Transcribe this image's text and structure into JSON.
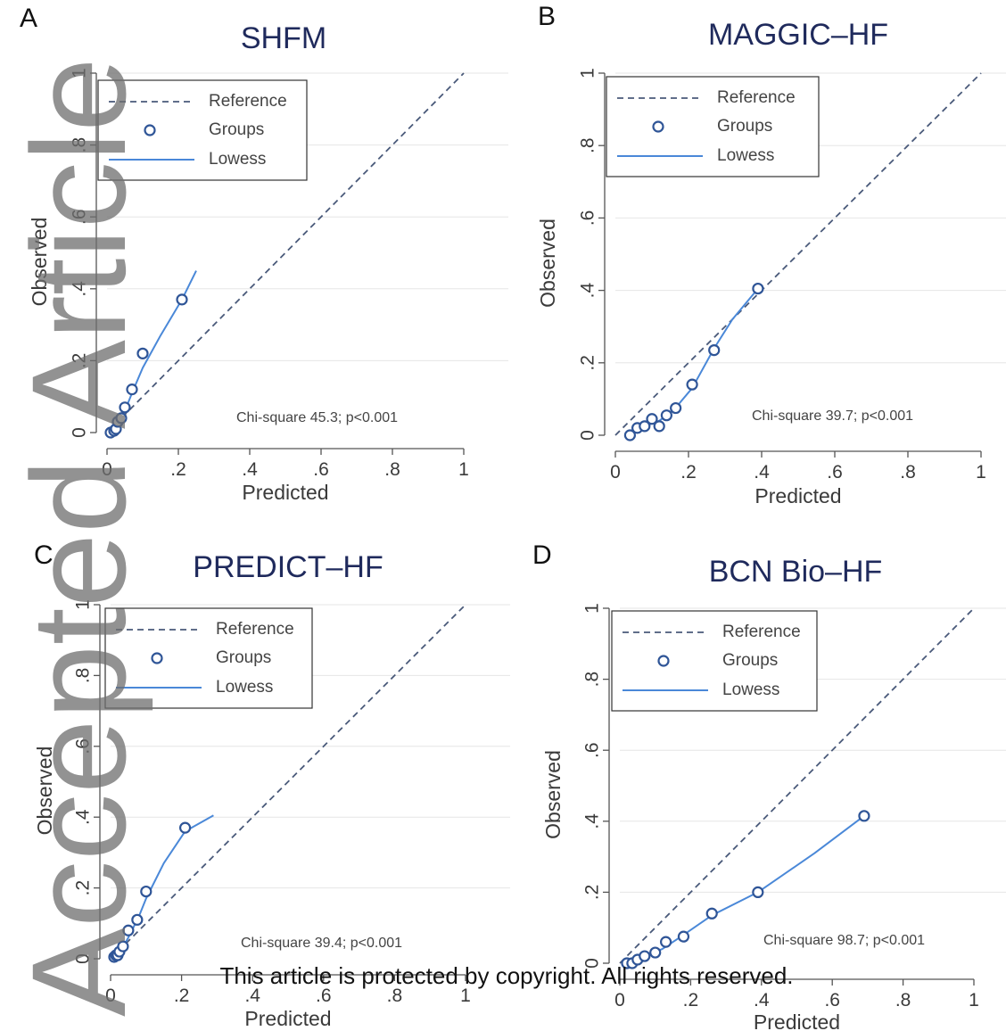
{
  "watermark": "Accepted Article",
  "footer": "This article is protected by copyright. All rights reserved.",
  "colors": {
    "reference": "#4a5a7a",
    "groups": "#2f5597",
    "lowess": "#4a88d8",
    "axis": "#555555",
    "grid": "#e6e6e6"
  },
  "chart_data": [
    {
      "panel": "A",
      "type": "scatter",
      "title": "SHFM",
      "xlabel": "Predicted",
      "ylabel": "Observed",
      "xlim": [
        0,
        1
      ],
      "ylim": [
        0,
        1
      ],
      "xticks": [
        "0",
        ".2",
        ".4",
        ".6",
        ".8",
        "1"
      ],
      "yticks": [
        "0",
        ".2",
        ".4",
        ".6",
        ".8",
        "1"
      ],
      "legend": [
        "Reference",
        "Groups",
        "Lowess"
      ],
      "legend_position": "top-left",
      "annotation": "Chi-square 45.3; p<0.001",
      "groups": [
        [
          0.01,
          0.0
        ],
        [
          0.02,
          0.005
        ],
        [
          0.025,
          0.01
        ],
        [
          0.03,
          0.03
        ],
        [
          0.04,
          0.04
        ],
        [
          0.05,
          0.07
        ],
        [
          0.07,
          0.12
        ],
        [
          0.1,
          0.22
        ],
        [
          0.21,
          0.37
        ]
      ],
      "lowess": [
        [
          0.01,
          0.0
        ],
        [
          0.03,
          0.025
        ],
        [
          0.05,
          0.06
        ],
        [
          0.07,
          0.11
        ],
        [
          0.1,
          0.18
        ],
        [
          0.15,
          0.27
        ],
        [
          0.21,
          0.37
        ],
        [
          0.25,
          0.45
        ]
      ]
    },
    {
      "panel": "B",
      "type": "scatter",
      "title": "MAGGIC–HF",
      "xlabel": "Predicted",
      "ylabel": "Observed",
      "xlim": [
        0,
        1
      ],
      "ylim": [
        0,
        1
      ],
      "xticks": [
        "0",
        ".2",
        ".4",
        ".6",
        ".8",
        "1"
      ],
      "yticks": [
        "0",
        ".2",
        ".4",
        ".6",
        ".8",
        "1"
      ],
      "legend": [
        "Reference",
        "Groups",
        "Lowess"
      ],
      "legend_position": "top-left",
      "annotation": "Chi-square 39.7; p<0.001",
      "groups": [
        [
          0.04,
          0.0
        ],
        [
          0.06,
          0.02
        ],
        [
          0.08,
          0.025
        ],
        [
          0.1,
          0.045
        ],
        [
          0.12,
          0.025
        ],
        [
          0.14,
          0.055
        ],
        [
          0.165,
          0.075
        ],
        [
          0.21,
          0.14
        ],
        [
          0.27,
          0.235
        ],
        [
          0.39,
          0.405
        ]
      ],
      "lowess": [
        [
          0.04,
          0.005
        ],
        [
          0.08,
          0.025
        ],
        [
          0.12,
          0.04
        ],
        [
          0.16,
          0.07
        ],
        [
          0.21,
          0.13
        ],
        [
          0.27,
          0.24
        ],
        [
          0.32,
          0.32
        ],
        [
          0.39,
          0.405
        ]
      ]
    },
    {
      "panel": "C",
      "type": "scatter",
      "title": "PREDICT–HF",
      "xlabel": "Predicted",
      "ylabel": "Observed",
      "xlim": [
        0,
        1
      ],
      "ylim": [
        0,
        1
      ],
      "xticks": [
        "0",
        ".2",
        ".4",
        ".6",
        ".8",
        "1"
      ],
      "yticks": [
        "0",
        ".2",
        ".4",
        ".6",
        ".8",
        "1"
      ],
      "legend": [
        "Reference",
        "Groups",
        "Lowess"
      ],
      "legend_position": "top-left",
      "annotation": "Chi-square 39.4; p<0.001",
      "groups": [
        [
          0.01,
          0.005
        ],
        [
          0.015,
          0.01
        ],
        [
          0.02,
          0.01
        ],
        [
          0.025,
          0.02
        ],
        [
          0.035,
          0.035
        ],
        [
          0.05,
          0.08
        ],
        [
          0.075,
          0.11
        ],
        [
          0.1,
          0.19
        ],
        [
          0.21,
          0.37
        ]
      ],
      "lowess": [
        [
          0.01,
          0.0
        ],
        [
          0.03,
          0.025
        ],
        [
          0.05,
          0.06
        ],
        [
          0.08,
          0.12
        ],
        [
          0.1,
          0.17
        ],
        [
          0.15,
          0.27
        ],
        [
          0.21,
          0.36
        ],
        [
          0.29,
          0.405
        ]
      ]
    },
    {
      "panel": "D",
      "type": "scatter",
      "title": "BCN Bio–HF",
      "xlabel": "Predicted",
      "ylabel": "Observed",
      "xlim": [
        0,
        1
      ],
      "ylim": [
        0,
        1
      ],
      "xticks": [
        "0",
        ".2",
        ".4",
        ".6",
        ".8",
        "1"
      ],
      "yticks": [
        "0",
        ".2",
        ".4",
        ".6",
        ".8",
        "1"
      ],
      "legend": [
        "Reference",
        "Groups",
        "Lowess"
      ],
      "legend_position": "top-left",
      "annotation": "Chi-square 98.7; p<0.001",
      "groups": [
        [
          0.02,
          0.0
        ],
        [
          0.035,
          0.0
        ],
        [
          0.05,
          0.01
        ],
        [
          0.07,
          0.02
        ],
        [
          0.1,
          0.03
        ],
        [
          0.13,
          0.06
        ],
        [
          0.18,
          0.075
        ],
        [
          0.26,
          0.14
        ],
        [
          0.39,
          0.2
        ],
        [
          0.69,
          0.415
        ]
      ],
      "lowess": [
        [
          0.02,
          0.0
        ],
        [
          0.06,
          0.015
        ],
        [
          0.12,
          0.04
        ],
        [
          0.18,
          0.08
        ],
        [
          0.26,
          0.135
        ],
        [
          0.39,
          0.2
        ],
        [
          0.55,
          0.31
        ],
        [
          0.69,
          0.415
        ]
      ]
    }
  ]
}
